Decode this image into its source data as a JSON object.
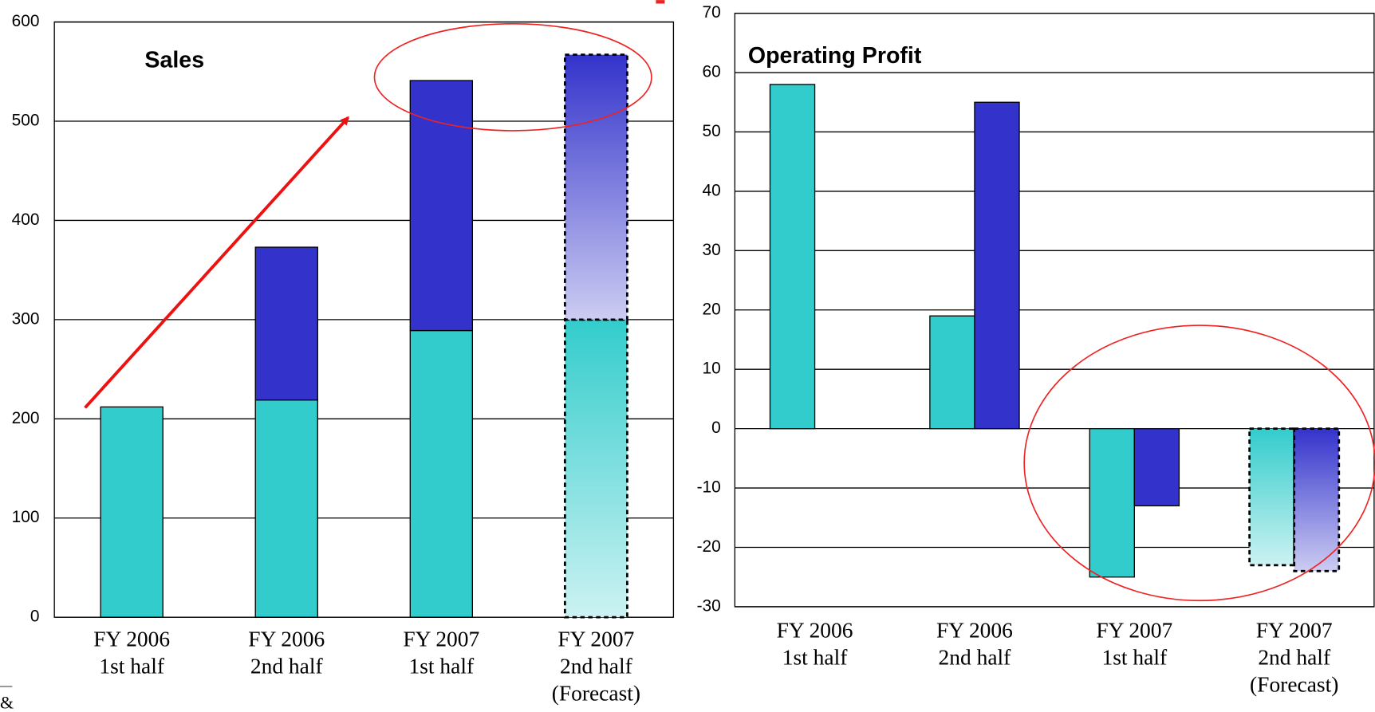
{
  "chart_data": [
    {
      "type": "bar",
      "stacked": true,
      "title": "Sales",
      "categories": [
        "FY 2006\n1st half",
        "FY 2006\n2nd half",
        "FY 2007\n1st half",
        "FY 2007\n2nd half\n(Forecast)"
      ],
      "forecast": [
        false,
        false,
        false,
        true
      ],
      "series": [
        {
          "color": "#33cccc",
          "values": [
            212,
            219,
            289,
            300
          ]
        },
        {
          "color": "#3333cc",
          "values": [
            null,
            154,
            252,
            267
          ]
        }
      ],
      "ylim": [
        0,
        600
      ],
      "yticks": [
        0,
        100,
        200,
        300,
        400,
        500,
        600
      ],
      "grid": true
    },
    {
      "type": "bar",
      "stacked": false,
      "title": "Operating Profit",
      "categories": [
        "FY 2006\n1st half",
        "FY 2006\n2nd half",
        "FY 2007\n1st half",
        "FY 2007\n2nd half\n(Forecast)"
      ],
      "forecast": [
        false,
        false,
        false,
        true
      ],
      "series": [
        {
          "color": "#33cccc",
          "values": [
            58,
            19,
            -25,
            -23
          ]
        },
        {
          "color": "#3333cc",
          "values": [
            null,
            55,
            -13,
            -24
          ]
        }
      ],
      "ylim": [
        -30,
        70
      ],
      "yticks": [
        -30,
        -20,
        -10,
        0,
        10,
        20,
        30,
        40,
        50,
        60,
        70
      ],
      "grid": true
    }
  ],
  "footer_fragment": "&"
}
